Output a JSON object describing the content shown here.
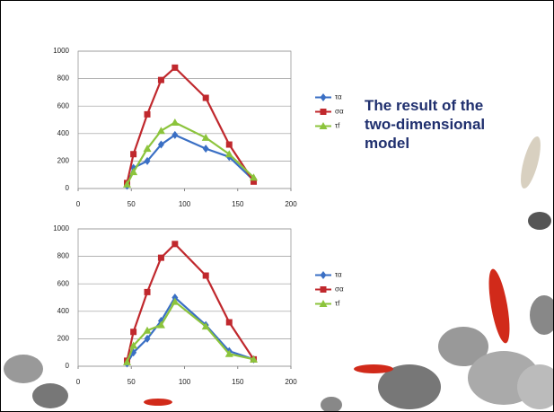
{
  "heading": "The result of the two-dimensional model",
  "chart_data": [
    {
      "type": "line",
      "x": [
        46,
        52,
        65,
        78,
        91,
        120,
        142,
        165
      ],
      "series": [
        {
          "name": "τα",
          "color": "#3a6fc4",
          "marker": "diamond",
          "values": [
            20,
            150,
            200,
            320,
            390,
            290,
            230,
            60
          ]
        },
        {
          "name": "σα",
          "color": "#c0282d",
          "marker": "square",
          "values": [
            40,
            250,
            540,
            790,
            880,
            660,
            320,
            50
          ]
        },
        {
          "name": "τf",
          "color": "#8cc43c",
          "marker": "triangle",
          "values": [
            30,
            120,
            290,
            420,
            480,
            370,
            250,
            80
          ]
        }
      ],
      "xlim": [
        0,
        200
      ],
      "xticks": [
        0,
        50,
        100,
        150,
        200
      ],
      "ylim": [
        0,
        1000
      ],
      "yticks": [
        0,
        200,
        400,
        600,
        800,
        1000
      ],
      "grid": true,
      "legend": "right"
    },
    {
      "type": "line",
      "x": [
        46,
        52,
        65,
        78,
        91,
        120,
        142,
        165
      ],
      "series": [
        {
          "name": "τα",
          "color": "#3a6fc4",
          "marker": "diamond",
          "values": [
            20,
            100,
            200,
            330,
            500,
            300,
            110,
            50
          ]
        },
        {
          "name": "σα",
          "color": "#c0282d",
          "marker": "square",
          "values": [
            40,
            250,
            540,
            790,
            890,
            660,
            320,
            50
          ]
        },
        {
          "name": "τf",
          "color": "#8cc43c",
          "marker": "triangle",
          "values": [
            30,
            150,
            260,
            300,
            470,
            290,
            90,
            50
          ]
        }
      ],
      "xlim": [
        0,
        200
      ],
      "xticks": [
        0,
        50,
        100,
        150,
        200
      ],
      "ylim": [
        0,
        1000
      ],
      "yticks": [
        0,
        200,
        400,
        600,
        800,
        1000
      ],
      "grid": true,
      "legend": "right"
    }
  ]
}
